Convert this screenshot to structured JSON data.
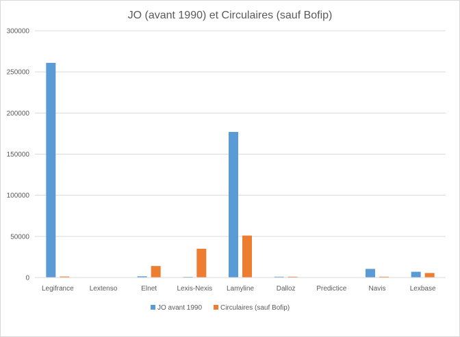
{
  "chart_data": {
    "type": "bar",
    "title": "JO (avant 1990) et Circulaires (sauf Bofip)",
    "xlabel": "",
    "ylabel": "",
    "categories": [
      "Legifrance",
      "Lextenso",
      "Elnet",
      "Lexis-Nexis",
      "Lamyline",
      "Dalloz",
      "Predictice",
      "Navis",
      "Lexbase"
    ],
    "series": [
      {
        "name": "JO avant 1990",
        "color": "#5b9bd5",
        "values": [
          261000,
          0,
          1500,
          800,
          177000,
          1000,
          0,
          10500,
          7000
        ]
      },
      {
        "name": "Circulaires (sauf Bofip)",
        "color": "#ed7d31",
        "values": [
          1200,
          0,
          14000,
          35000,
          51000,
          1000,
          0,
          1000,
          5500
        ]
      }
    ],
    "ylim": [
      0,
      300000
    ],
    "yticks": [
      "0",
      "50000",
      "100000",
      "150000",
      "200000",
      "250000",
      "300000"
    ],
    "grid": true,
    "legend_position": "bottom"
  }
}
